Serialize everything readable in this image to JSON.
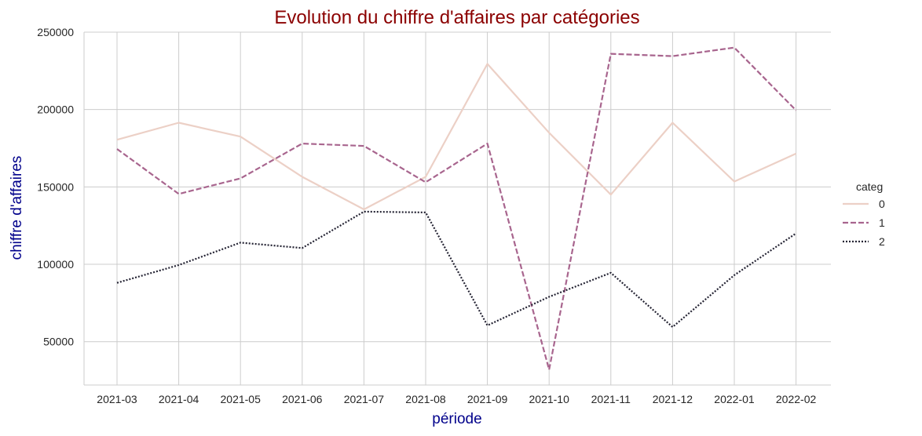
{
  "chart_data": {
    "type": "line",
    "title": "Evolution du chiffre d'affaires par catégories",
    "xlabel": "période",
    "ylabel": "chiffre d'affaires",
    "categories": [
      "2021-03",
      "2021-04",
      "2021-05",
      "2021-06",
      "2021-07",
      "2021-08",
      "2021-09",
      "2021-10",
      "2021-11",
      "2021-12",
      "2022-01",
      "2022-02"
    ],
    "ylim": [
      22000,
      250000
    ],
    "yticks": [
      50000,
      100000,
      150000,
      200000,
      250000
    ],
    "grid": true,
    "legend": {
      "title": "categ",
      "placement": "right"
    },
    "series": [
      {
        "name": "0",
        "color": "#ecd0c6",
        "dash": "solid",
        "values": [
          180500,
          191500,
          182500,
          156500,
          135500,
          156500,
          229500,
          185000,
          145000,
          191500,
          153500,
          171500
        ]
      },
      {
        "name": "1",
        "color": "#a8658e",
        "dash": "dashed",
        "values": [
          174500,
          145500,
          155500,
          178000,
          176500,
          153000,
          178000,
          32000,
          236000,
          234500,
          240000,
          199500
        ]
      },
      {
        "name": "2",
        "color": "#252434",
        "dash": "dotted",
        "values": [
          88000,
          99500,
          114000,
          110500,
          134000,
          133500,
          60500,
          79000,
          94500,
          59500,
          93000,
          120000
        ]
      }
    ]
  }
}
